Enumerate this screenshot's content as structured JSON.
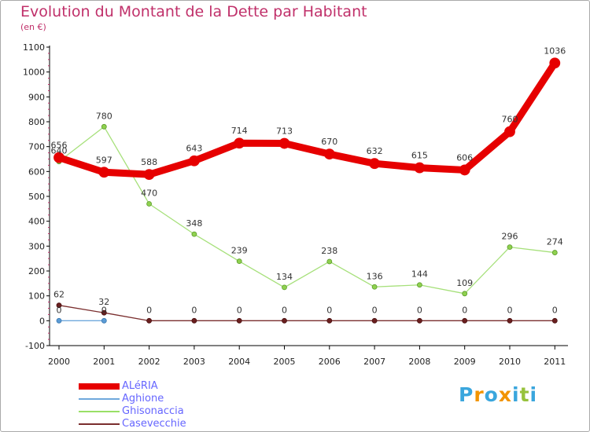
{
  "chart_data": {
    "type": "line",
    "title": "Evolution du Montant de la Dette par Habitant",
    "subtitle": "(en €)",
    "xlabel": "",
    "ylabel": "",
    "x": [
      "2000",
      "2001",
      "2002",
      "2003",
      "2004",
      "2005",
      "2006",
      "2007",
      "2008",
      "2009",
      "2010",
      "2011"
    ],
    "ylim": [
      -100,
      1100
    ],
    "yticks": [
      -100,
      0,
      100,
      200,
      300,
      400,
      500,
      600,
      700,
      800,
      900,
      1000,
      1100
    ],
    "grid": false,
    "legend_position": "bottom-left",
    "series": [
      {
        "name": "ALéRIA",
        "color": "#e60000",
        "values": [
          656,
          597,
          588,
          643,
          714,
          713,
          670,
          632,
          615,
          606,
          760,
          1036
        ],
        "labels": [
          "656",
          "597",
          "588",
          "643",
          "714",
          "713",
          "670",
          "632",
          "615",
          "606",
          "760",
          "1036"
        ]
      },
      {
        "name": "Aghione",
        "color": "#6fa8dc",
        "values": [
          0,
          0,
          null,
          null,
          null,
          null,
          null,
          null,
          null,
          null,
          null,
          null
        ],
        "labels": [
          "0",
          "0",
          "",
          "",
          "",
          "",
          "",
          "",
          "",
          "",
          "",
          ""
        ]
      },
      {
        "name": "Ghisonaccia",
        "color": "#99e066",
        "values": [
          640,
          780,
          470,
          348,
          239,
          134,
          238,
          136,
          144,
          109,
          296,
          274
        ],
        "labels": [
          "640",
          "780",
          "470",
          "348",
          "239",
          "134",
          "238",
          "136",
          "144",
          "109",
          "296",
          "274"
        ]
      },
      {
        "name": "Casevecchie",
        "color": "#7a2e2e",
        "values": [
          62,
          32,
          0,
          0,
          0,
          0,
          0,
          0,
          0,
          0,
          0,
          0
        ],
        "labels": [
          "62",
          "32",
          "0",
          "0",
          "0",
          "0",
          "0",
          "0",
          "0",
          "0",
          "0",
          "0"
        ]
      }
    ]
  },
  "legend": {
    "items": [
      {
        "label": "ALéRIA",
        "color": "#e60000"
      },
      {
        "label": "Aghione",
        "color": "#6fa8dc"
      },
      {
        "label": "Ghisonaccia",
        "color": "#99e066"
      },
      {
        "label": "Casevecchie",
        "color": "#7a2e2e"
      }
    ]
  },
  "logo": {
    "letters": [
      "P",
      "r",
      "o",
      "x",
      "i",
      "t",
      "i"
    ],
    "colors": [
      "#3aa6dd",
      "#f29400",
      "#3aa6dd",
      "#f29400",
      "#3aa6dd",
      "#97c23c",
      "#3aa6dd"
    ]
  }
}
